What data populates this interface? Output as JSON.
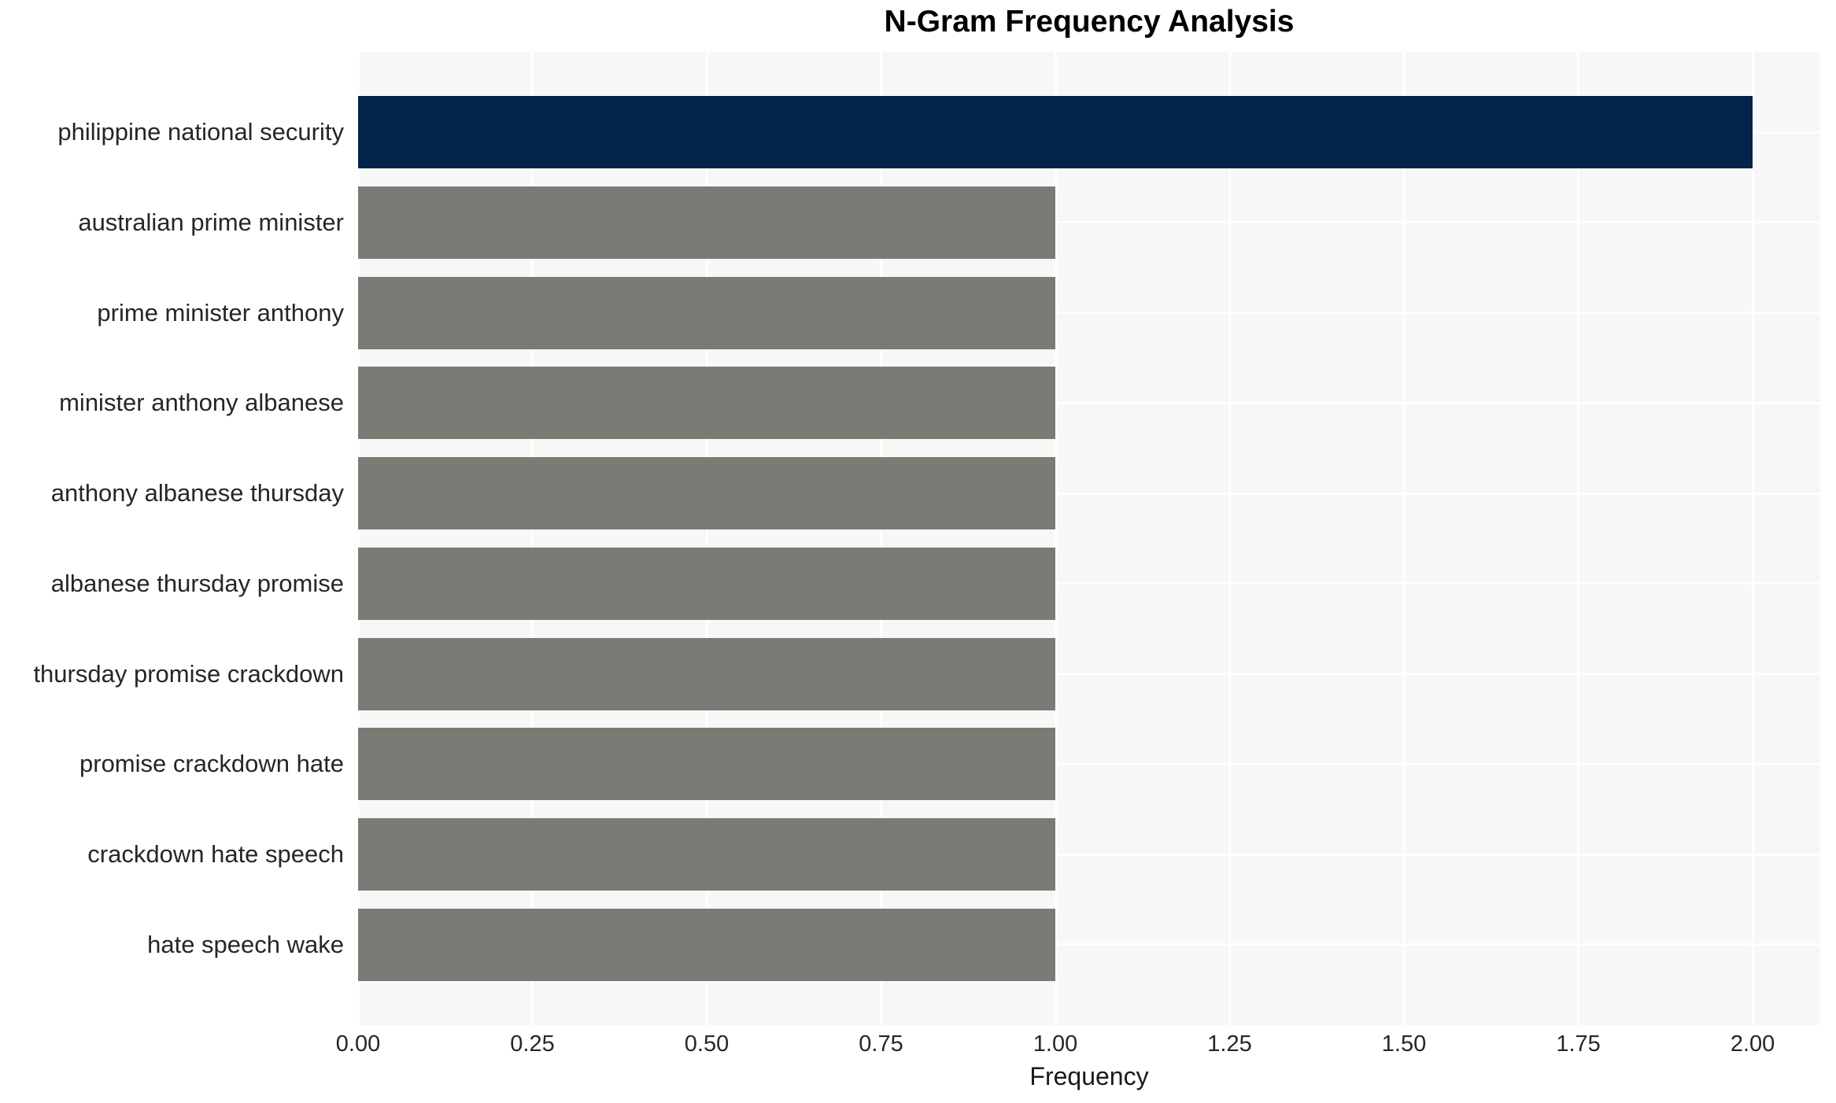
{
  "title": "N-Gram Frequency Analysis",
  "chart_data": {
    "type": "bar",
    "orientation": "horizontal",
    "title": "N-Gram Frequency Analysis",
    "xlabel": "Frequency",
    "ylabel": "",
    "categories": [
      "philippine national security",
      "australian prime minister",
      "prime minister anthony",
      "minister anthony albanese",
      "anthony albanese thursday",
      "albanese thursday promise",
      "thursday promise crackdown",
      "promise crackdown hate",
      "crackdown hate speech",
      "hate speech wake"
    ],
    "values": [
      2,
      1,
      1,
      1,
      1,
      1,
      1,
      1,
      1,
      1
    ],
    "xlim": [
      0,
      2.097
    ],
    "xticks": [
      0,
      0.25,
      0.5,
      0.75,
      1.0,
      1.25,
      1.5,
      1.75,
      2.0
    ],
    "xtick_labels": [
      "0.00",
      "0.25",
      "0.50",
      "0.75",
      "1.00",
      "1.25",
      "1.50",
      "1.75",
      "2.00"
    ],
    "grid": true,
    "legend": false,
    "colors": {
      "highlight_bar": "#02234c",
      "default_bar": "#7b7a75",
      "plot_background": "#f7f7f7",
      "gridline": "#ffffff",
      "text": "#262626"
    },
    "bar_colors": [
      "#02234c",
      "#7b7a75",
      "#7b7a75",
      "#7b7a75",
      "#7b7a75",
      "#7b7a75",
      "#7b7a75",
      "#7b7a75",
      "#7b7a75",
      "#7b7a75"
    ]
  }
}
